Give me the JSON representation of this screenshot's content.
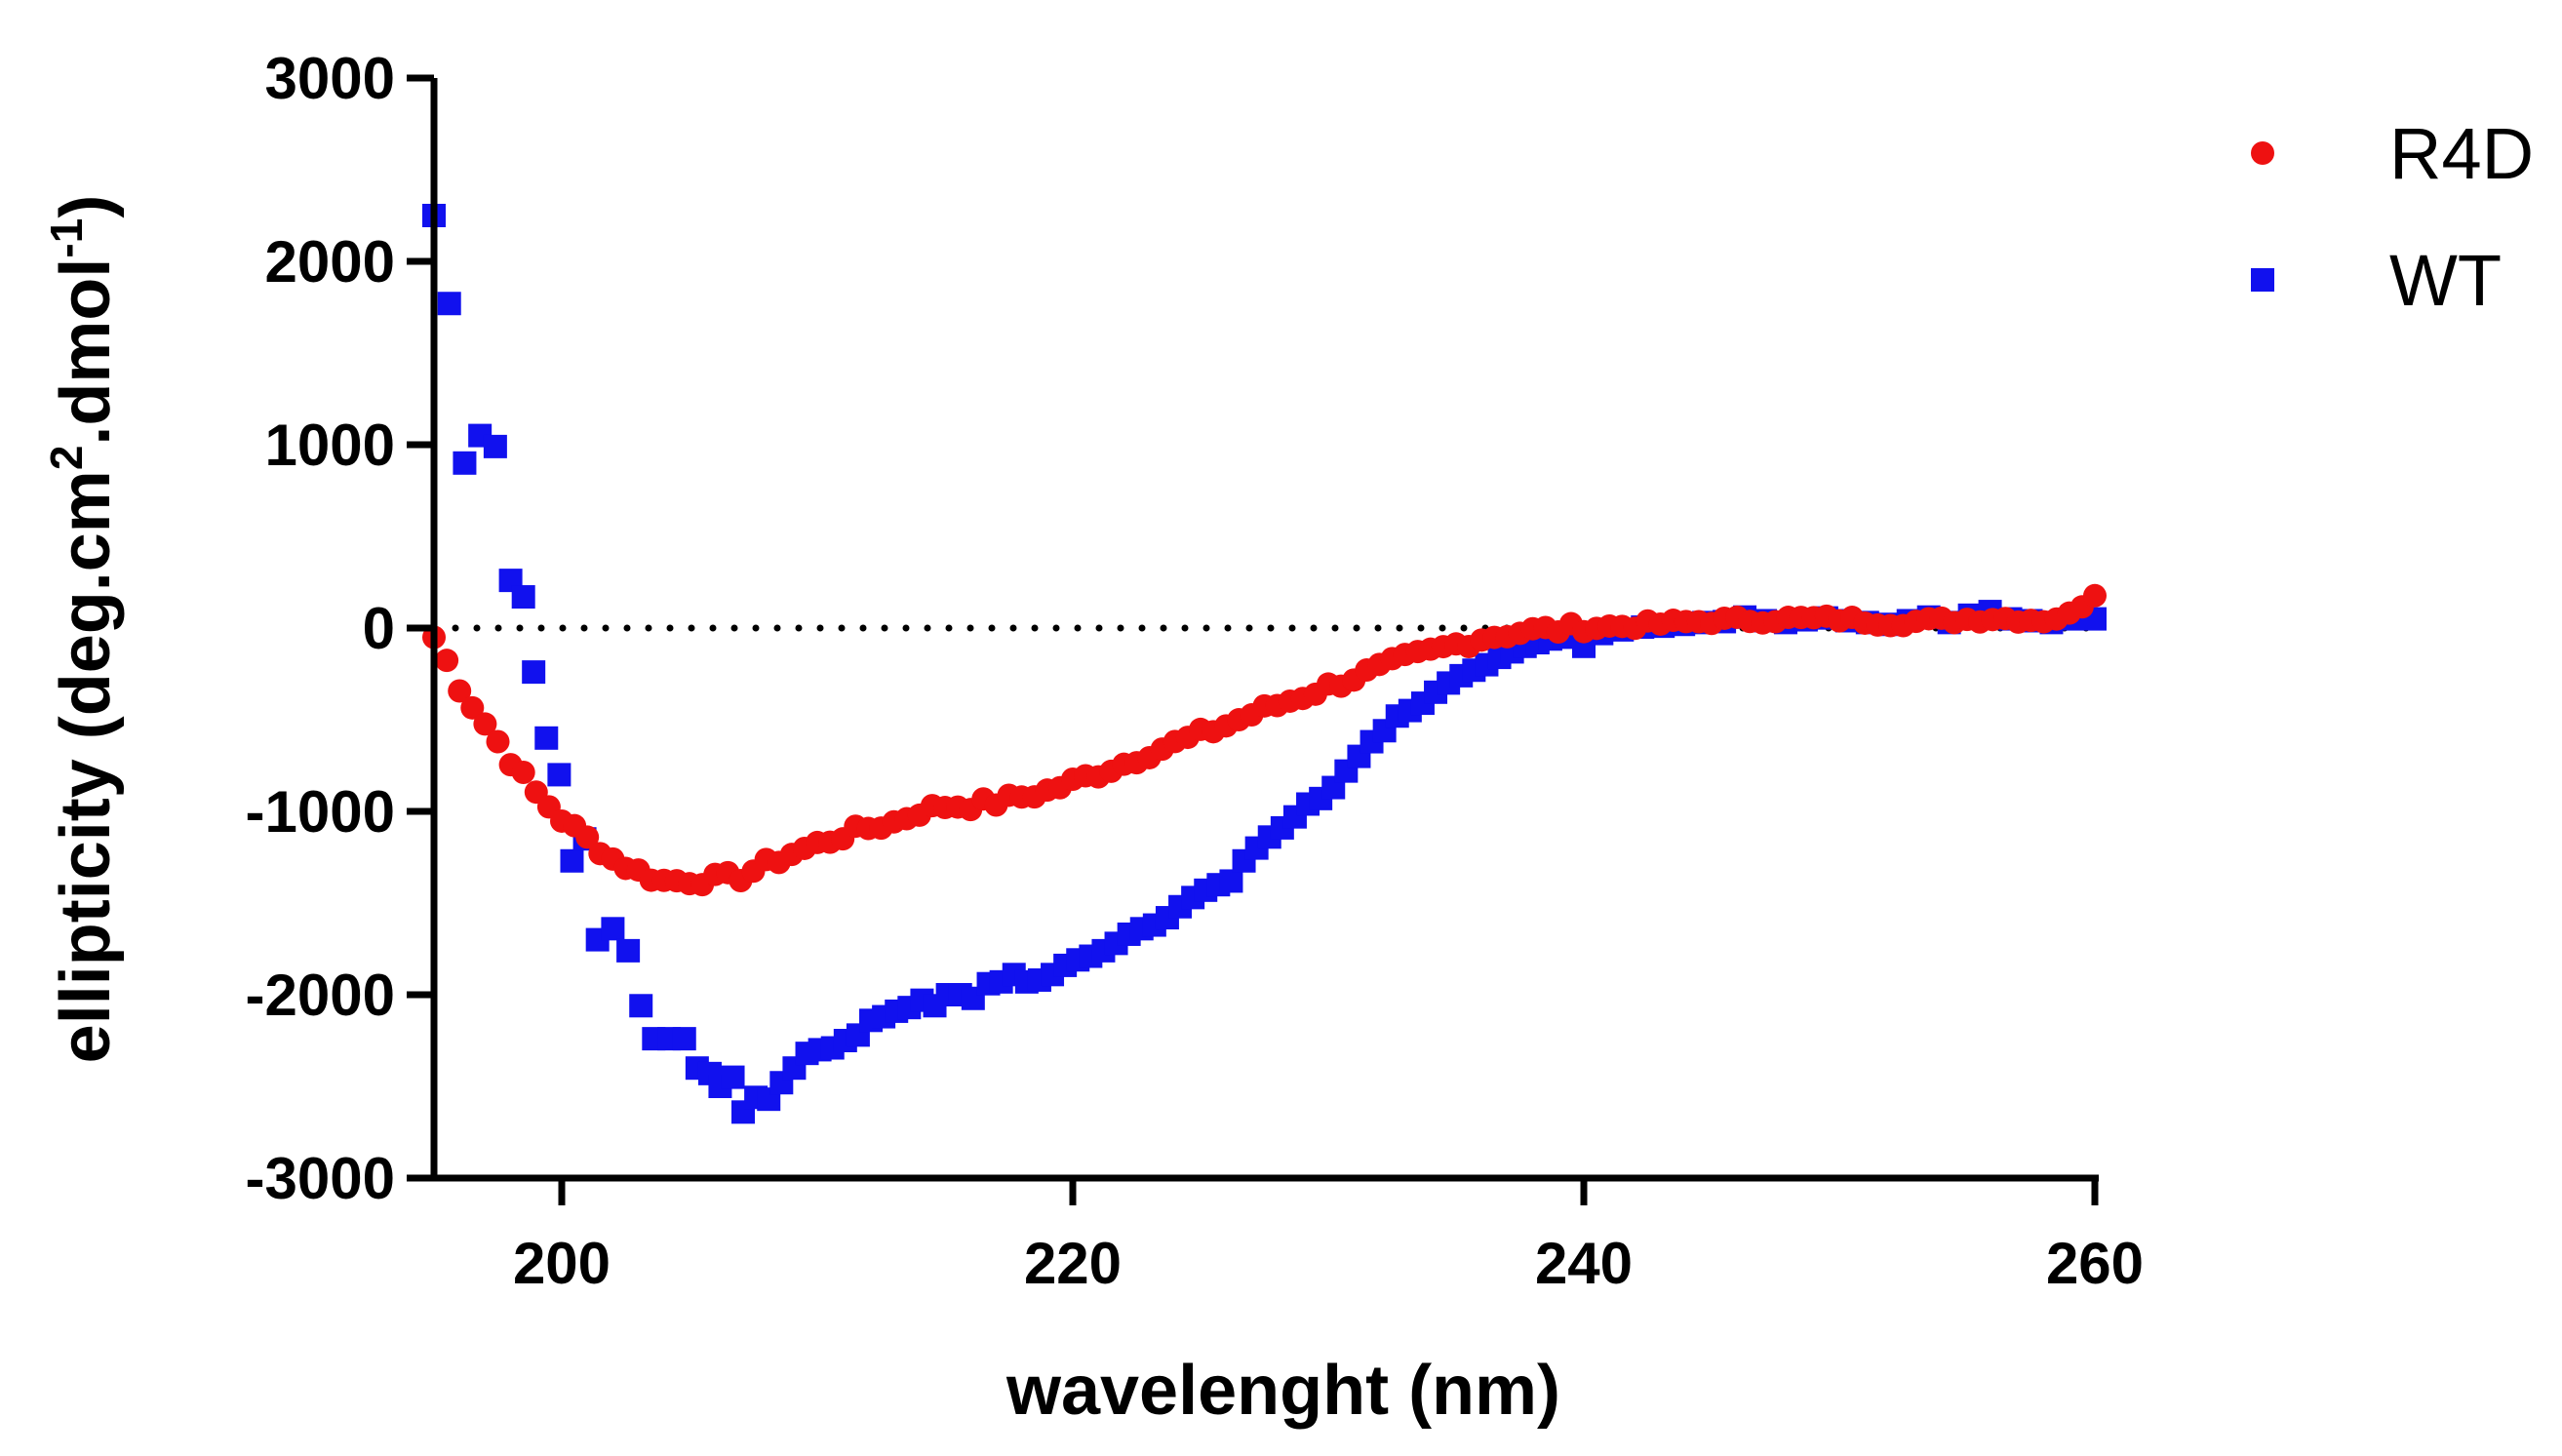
{
  "chart_data": {
    "type": "scatter",
    "title": "",
    "xlabel": "wavelenght (nm)",
    "ylabel_main": "ellipticity (deg.cm",
    "ylabel_sup1": "2",
    "ylabel_mid": ".dmol",
    "ylabel_sup2": "-1",
    "ylabel_end": ")",
    "xlim": [
      195,
      260
    ],
    "ylim": [
      -3000,
      3000
    ],
    "x_ticks": [
      200,
      220,
      240,
      260
    ],
    "y_ticks": [
      3000,
      2000,
      1000,
      0,
      -1000,
      -2000,
      -3000
    ],
    "x_tick_labels": [
      "200",
      "220",
      "240",
      "260"
    ],
    "y_tick_labels": [
      "3000",
      "2000",
      "1000",
      "0",
      "-1000",
      "-2000",
      "-3000"
    ],
    "zero_line": "dotted",
    "legend_position": "top-right",
    "series": [
      {
        "name": "R4D",
        "color": "#ee1111",
        "marker": "circle",
        "anchors": [
          [
            195,
            -50
          ],
          [
            195.5,
            -180
          ],
          [
            196,
            -320
          ],
          [
            197,
            -520
          ],
          [
            198,
            -720
          ],
          [
            199,
            -900
          ],
          [
            200,
            -1040
          ],
          [
            201,
            -1150
          ],
          [
            202,
            -1260
          ],
          [
            203,
            -1330
          ],
          [
            204,
            -1380
          ],
          [
            205,
            -1375
          ],
          [
            206,
            -1370
          ],
          [
            207,
            -1355
          ],
          [
            208,
            -1290
          ],
          [
            209,
            -1230
          ],
          [
            210,
            -1180
          ],
          [
            211,
            -1130
          ],
          [
            212,
            -1090
          ],
          [
            213,
            -1060
          ],
          [
            214,
            -1000
          ],
          [
            215,
            -970
          ],
          [
            216,
            -965
          ],
          [
            217,
            -950
          ],
          [
            218,
            -920
          ],
          [
            219,
            -890
          ],
          [
            220,
            -840
          ],
          [
            221,
            -790
          ],
          [
            222,
            -740
          ],
          [
            223,
            -680
          ],
          [
            224,
            -630
          ],
          [
            225,
            -580
          ],
          [
            226,
            -530
          ],
          [
            227,
            -470
          ],
          [
            228,
            -420
          ],
          [
            229,
            -370
          ],
          [
            230,
            -320
          ],
          [
            231,
            -270
          ],
          [
            232,
            -220
          ],
          [
            233,
            -170
          ],
          [
            234,
            -130
          ],
          [
            235,
            -90
          ],
          [
            236,
            -55
          ],
          [
            237,
            -30
          ],
          [
            238,
            -15
          ],
          [
            240,
            0
          ],
          [
            242,
            15
          ],
          [
            245,
            40
          ],
          [
            248,
            50
          ],
          [
            250,
            50
          ],
          [
            252,
            30
          ],
          [
            254,
            40
          ],
          [
            256,
            55
          ],
          [
            258,
            45
          ],
          [
            259,
            70
          ],
          [
            260,
            190
          ]
        ]
      },
      {
        "name": "WT",
        "color": "#1111ee",
        "marker": "square",
        "points": [
          [
            195.0,
            2250
          ],
          [
            195.6,
            1770
          ],
          [
            196.2,
            900
          ],
          [
            196.8,
            1050
          ],
          [
            197.4,
            990
          ],
          [
            198.0,
            260
          ],
          [
            198.5,
            170
          ],
          [
            198.9,
            -240
          ],
          [
            199.4,
            -600
          ],
          [
            199.9,
            -800
          ],
          [
            200.4,
            -1270
          ],
          [
            200.9,
            -1150
          ],
          [
            201.4,
            -1700
          ],
          [
            202.0,
            -1640
          ],
          [
            202.6,
            -1760
          ],
          [
            203.1,
            -2060
          ],
          [
            203.6,
            -2240
          ],
          [
            204.2,
            -2240
          ],
          [
            204.8,
            -2240
          ],
          [
            205.3,
            -2400
          ],
          [
            205.8,
            -2430
          ],
          [
            206.2,
            -2500
          ],
          [
            206.7,
            -2450
          ],
          [
            207.1,
            -2640
          ],
          [
            207.6,
            -2560
          ],
          [
            208.1,
            -2570
          ],
          [
            208.6,
            -2480
          ],
          [
            209.1,
            -2400
          ],
          [
            209.6,
            -2320
          ],
          [
            210.1,
            -2300
          ],
          [
            210.6,
            -2290
          ],
          [
            211.1,
            -2250
          ],
          [
            211.6,
            -2220
          ],
          [
            212.1,
            -2140
          ],
          [
            212.6,
            -2120
          ],
          [
            213.1,
            -2090
          ],
          [
            213.6,
            -2070
          ],
          [
            214.1,
            -2030
          ],
          [
            214.6,
            -2060
          ],
          [
            215.1,
            -2000
          ],
          [
            215.6,
            -2000
          ],
          [
            216.1,
            -2020
          ],
          [
            216.7,
            -1940
          ],
          [
            217.2,
            -1930
          ],
          [
            217.7,
            -1890
          ],
          [
            218.2,
            -1930
          ],
          [
            218.7,
            -1920
          ],
          [
            219.2,
            -1890
          ],
          [
            219.7,
            -1840
          ],
          [
            220.2,
            -1810
          ],
          [
            220.7,
            -1790
          ],
          [
            221.2,
            -1760
          ],
          [
            221.7,
            -1720
          ],
          [
            222.2,
            -1670
          ],
          [
            222.7,
            -1640
          ],
          [
            223.2,
            -1620
          ],
          [
            223.7,
            -1580
          ],
          [
            224.2,
            -1520
          ],
          [
            224.7,
            -1470
          ],
          [
            225.2,
            -1430
          ],
          [
            225.7,
            -1400
          ],
          [
            226.2,
            -1380
          ],
          [
            226.7,
            -1270
          ],
          [
            227.2,
            -1200
          ],
          [
            227.7,
            -1140
          ],
          [
            228.2,
            -1090
          ],
          [
            228.7,
            -1030
          ],
          [
            229.2,
            -960
          ],
          [
            229.7,
            -930
          ],
          [
            230.2,
            -870
          ],
          [
            230.7,
            -780
          ],
          [
            231.2,
            -700
          ],
          [
            231.7,
            -620
          ],
          [
            232.2,
            -560
          ],
          [
            232.7,
            -480
          ],
          [
            233.2,
            -450
          ],
          [
            233.7,
            -410
          ],
          [
            234.2,
            -350
          ],
          [
            234.7,
            -300
          ],
          [
            235.2,
            -260
          ],
          [
            235.7,
            -230
          ],
          [
            236.2,
            -200
          ],
          [
            236.7,
            -160
          ],
          [
            237.2,
            -130
          ],
          [
            237.7,
            -100
          ],
          [
            238.2,
            -80
          ],
          [
            238.7,
            -60
          ],
          [
            239.2,
            -50
          ],
          [
            240.0,
            -100
          ],
          [
            240.7,
            -30
          ],
          [
            241.5,
            -10
          ],
          [
            242.3,
            5
          ],
          [
            243.1,
            10
          ],
          [
            243.9,
            20
          ],
          [
            244.7,
            30
          ],
          [
            245.5,
            35
          ],
          [
            246.3,
            60
          ],
          [
            247.1,
            40
          ],
          [
            247.9,
            30
          ],
          [
            248.7,
            45
          ],
          [
            249.5,
            55
          ],
          [
            250.3,
            40
          ],
          [
            251.1,
            30
          ],
          [
            251.9,
            20
          ],
          [
            252.7,
            40
          ],
          [
            253.5,
            60
          ],
          [
            254.3,
            30
          ],
          [
            255.1,
            70
          ],
          [
            255.9,
            90
          ],
          [
            256.7,
            50
          ],
          [
            257.5,
            40
          ],
          [
            258.3,
            30
          ],
          [
            259.1,
            50
          ],
          [
            260.0,
            50
          ]
        ]
      }
    ]
  }
}
